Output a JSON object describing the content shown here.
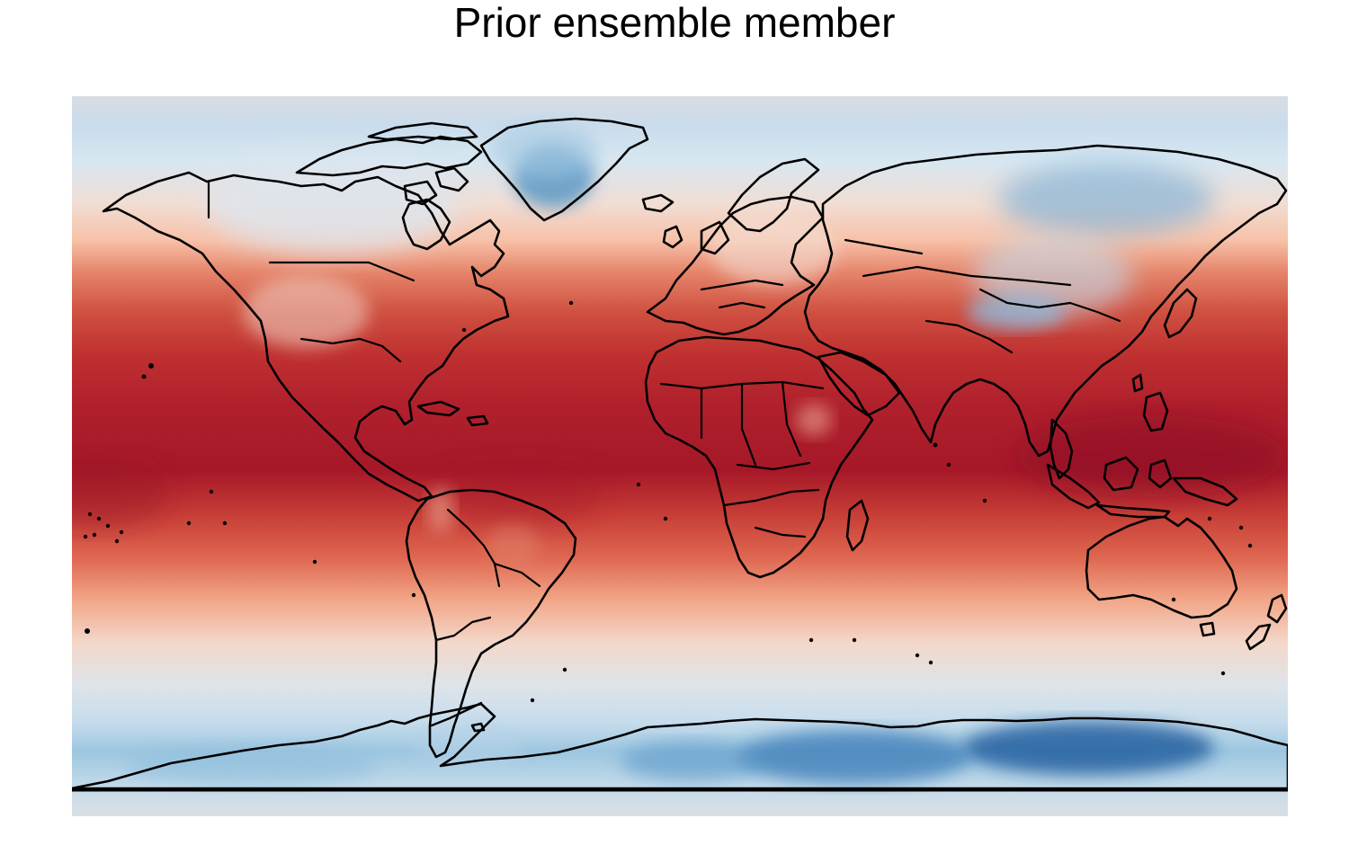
{
  "title": "Prior ensemble member",
  "map": {
    "projection": "equirectangular",
    "extent": {
      "lon": [
        -180,
        180
      ],
      "lat": [
        -90,
        90
      ]
    },
    "colormap": "RdBu_r",
    "colormap_stops": [
      "#053061",
      "#2166ac",
      "#4393c3",
      "#92c5de",
      "#d1e5f0",
      "#f7f7f7",
      "#fddbc7",
      "#f4a582",
      "#d6604d",
      "#b2182b",
      "#67001f"
    ],
    "colorbar_visible": false,
    "coastline_color": "#000000",
    "country_borders": true
  }
}
